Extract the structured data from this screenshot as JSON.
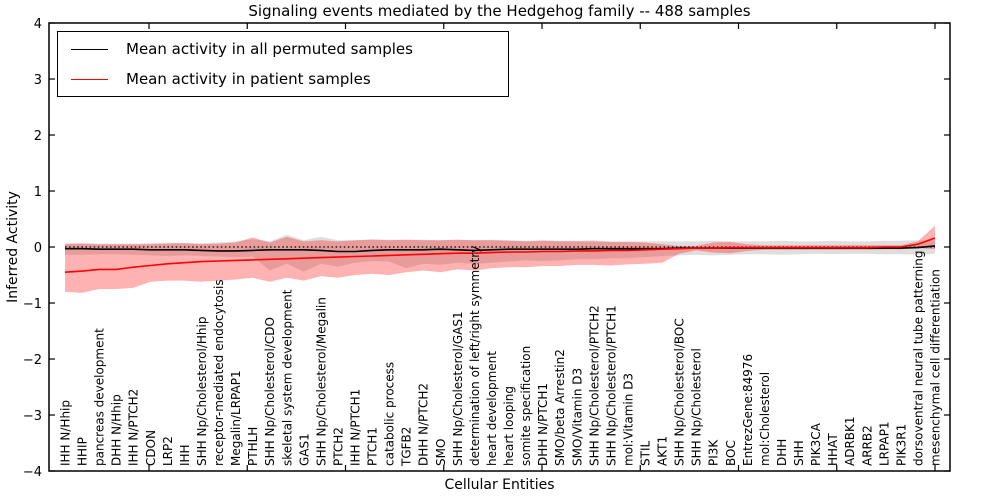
{
  "title": "Signaling events mediated by the Hedgehog family -- 488 samples",
  "legend": {
    "items": [
      {
        "label": "Mean activity in all permuted samples",
        "color": "#000000"
      },
      {
        "label": "Mean activity in patient samples",
        "color": "#ff0000"
      }
    ]
  },
  "axes": {
    "ylabel": "Inferred Activity",
    "xlabel": "Cellular Entities",
    "ytick_labels": [
      "4",
      "3",
      "2",
      "1",
      "0",
      "−1",
      "−2",
      "−3",
      "−4"
    ],
    "ytick_values": [
      4,
      3,
      2,
      1,
      0,
      -1,
      -2,
      -3,
      -4
    ]
  },
  "colors": {
    "permuted_line": "#000000",
    "patient_line": "#ff0000",
    "permuted_band": "#888888",
    "patient_band": "#ff0000",
    "frame": "#000000"
  },
  "chart_data": {
    "type": "line",
    "title": "Signaling events mediated by the Hedgehog family -- 488 samples",
    "xlabel": "Cellular Entities",
    "ylabel": "Inferred Activity",
    "ylim": [
      -4,
      4
    ],
    "grid": false,
    "legend_position": "upper left",
    "zero_reference_line": 0,
    "categories": [
      "IHH N/Hhip",
      "HHIP",
      "pancreas development",
      "DHH N/Hhip",
      "IHH N/PTCH2",
      "CDON",
      "LRP2",
      "IHH",
      "SHH Np/Cholesterol/Hhip",
      "receptor-mediated endocytosis",
      "Megalin/LRPAP1",
      "PTHLH",
      "SHH Np/Cholesterol/CDO",
      "skeletal system development",
      "GAS1",
      "SHH Np/Cholesterol/Megalin",
      "PTCH2",
      "IHH N/PTCH1",
      "PTCH1",
      "catabolic process",
      "TGFB2",
      "DHH N/PTCH2",
      "SMO",
      "SHH Np/Cholesterol/GAS1",
      "determination of left/right symmetry",
      "heart development",
      "heart looping",
      "somite specification",
      "DHH N/PTCH1",
      "SMO/beta Arrestin2",
      "SMO/Vitamin D3",
      "SHH Np/Cholesterol/PTCH2",
      "SHH Np/Cholesterol/PTCH1",
      "mol:Vitamin D3",
      "STIL",
      "AKT1",
      "SHH Np/Cholesterol/BOC",
      "SHH Np/Cholesterol",
      "PI3K",
      "BOC",
      "EntrezGene:84976",
      "mol:Cholesterol",
      "DHH",
      "SHH",
      "PIK3CA",
      "HHAT",
      "ADRBK1",
      "ARRB2",
      "LRPAP1",
      "PIK3R1",
      "dorsoventral neural tube patterning",
      "mesenchymal cell differentiation"
    ],
    "series": [
      {
        "name": "Mean activity in all permuted samples",
        "color": "#000000",
        "values": [
          -0.03,
          -0.03,
          -0.04,
          -0.04,
          -0.04,
          -0.05,
          -0.05,
          -0.05,
          -0.06,
          -0.07,
          -0.07,
          -0.06,
          -0.05,
          -0.05,
          -0.05,
          -0.06,
          -0.08,
          -0.08,
          -0.06,
          -0.05,
          -0.05,
          -0.05,
          -0.04,
          -0.05,
          -0.06,
          -0.05,
          -0.04,
          -0.04,
          -0.04,
          -0.04,
          -0.04,
          -0.03,
          -0.03,
          -0.03,
          -0.03,
          -0.03,
          -0.02,
          -0.02,
          -0.02,
          -0.02,
          -0.02,
          -0.02,
          -0.02,
          -0.02,
          -0.02,
          -0.02,
          -0.02,
          -0.02,
          -0.02,
          -0.02,
          -0.01,
          0.02
        ],
        "band_upper": [
          0.07,
          0.07,
          0.06,
          0.06,
          0.06,
          0.07,
          0.08,
          0.07,
          0.07,
          0.08,
          0.1,
          0.14,
          0.1,
          0.22,
          0.12,
          0.18,
          0.12,
          0.12,
          0.14,
          0.13,
          0.13,
          0.13,
          0.12,
          0.13,
          0.12,
          0.13,
          0.12,
          0.11,
          0.12,
          0.11,
          0.11,
          0.12,
          0.1,
          0.1,
          0.1,
          0.1,
          0.1,
          0.1,
          0.11,
          0.1,
          0.1,
          0.1,
          0.11,
          0.1,
          0.1,
          0.11,
          0.1,
          0.1,
          0.11,
          0.11,
          0.12,
          0.12
        ],
        "band_lower": [
          -0.14,
          -0.14,
          -0.13,
          -0.13,
          -0.14,
          -0.15,
          -0.16,
          -0.15,
          -0.16,
          -0.17,
          -0.18,
          -0.17,
          -0.42,
          -0.3,
          -0.44,
          -0.3,
          -0.35,
          -0.28,
          -0.25,
          -0.26,
          -0.38,
          -0.3,
          -0.32,
          -0.28,
          -0.3,
          -0.28,
          -0.26,
          -0.24,
          -0.25,
          -0.24,
          -0.22,
          -0.22,
          -0.2,
          -0.2,
          -0.18,
          -0.16,
          -0.15,
          -0.14,
          -0.15,
          -0.14,
          -0.13,
          -0.13,
          -0.14,
          -0.13,
          -0.12,
          -0.13,
          -0.12,
          -0.12,
          -0.13,
          -0.13,
          -0.14,
          -0.12
        ]
      },
      {
        "name": "Mean activity in patient samples",
        "color": "#ff0000",
        "values": [
          -0.45,
          -0.43,
          -0.4,
          -0.4,
          -0.36,
          -0.33,
          -0.3,
          -0.28,
          -0.26,
          -0.25,
          -0.24,
          -0.23,
          -0.22,
          -0.21,
          -0.2,
          -0.19,
          -0.18,
          -0.17,
          -0.16,
          -0.15,
          -0.14,
          -0.13,
          -0.12,
          -0.11,
          -0.11,
          -0.1,
          -0.09,
          -0.09,
          -0.08,
          -0.08,
          -0.07,
          -0.07,
          -0.06,
          -0.06,
          -0.05,
          -0.04,
          -0.03,
          -0.02,
          -0.02,
          -0.01,
          -0.01,
          -0.01,
          -0.01,
          -0.01,
          -0.01,
          -0.01,
          -0.01,
          -0.01,
          0.0,
          0.0,
          0.05,
          0.16
        ],
        "band_upper": [
          0.05,
          0.06,
          0.05,
          0.05,
          0.05,
          0.05,
          0.06,
          0.07,
          0.05,
          0.06,
          0.08,
          0.17,
          0.08,
          0.18,
          0.1,
          0.12,
          0.1,
          0.12,
          0.13,
          0.12,
          0.13,
          0.12,
          0.12,
          0.13,
          0.12,
          0.12,
          0.11,
          0.1,
          0.11,
          0.1,
          0.1,
          0.1,
          0.09,
          0.09,
          0.08,
          0.05,
          0.02,
          0.02,
          0.08,
          0.09,
          0.05,
          0.03,
          0.03,
          0.03,
          0.03,
          0.03,
          0.03,
          0.03,
          0.03,
          0.03,
          0.1,
          0.38
        ],
        "band_lower": [
          -0.8,
          -0.82,
          -0.75,
          -0.75,
          -0.73,
          -0.62,
          -0.6,
          -0.6,
          -0.62,
          -0.6,
          -0.58,
          -0.55,
          -0.62,
          -0.55,
          -0.6,
          -0.52,
          -0.55,
          -0.5,
          -0.48,
          -0.5,
          -0.45,
          -0.42,
          -0.45,
          -0.4,
          -0.42,
          -0.38,
          -0.36,
          -0.36,
          -0.34,
          -0.34,
          -0.32,
          -0.32,
          -0.33,
          -0.31,
          -0.3,
          -0.28,
          -0.12,
          -0.06,
          -0.1,
          -0.11,
          -0.07,
          -0.05,
          -0.05,
          -0.05,
          -0.05,
          -0.05,
          -0.05,
          -0.05,
          -0.04,
          -0.04,
          -0.02,
          -0.04
        ]
      }
    ]
  }
}
